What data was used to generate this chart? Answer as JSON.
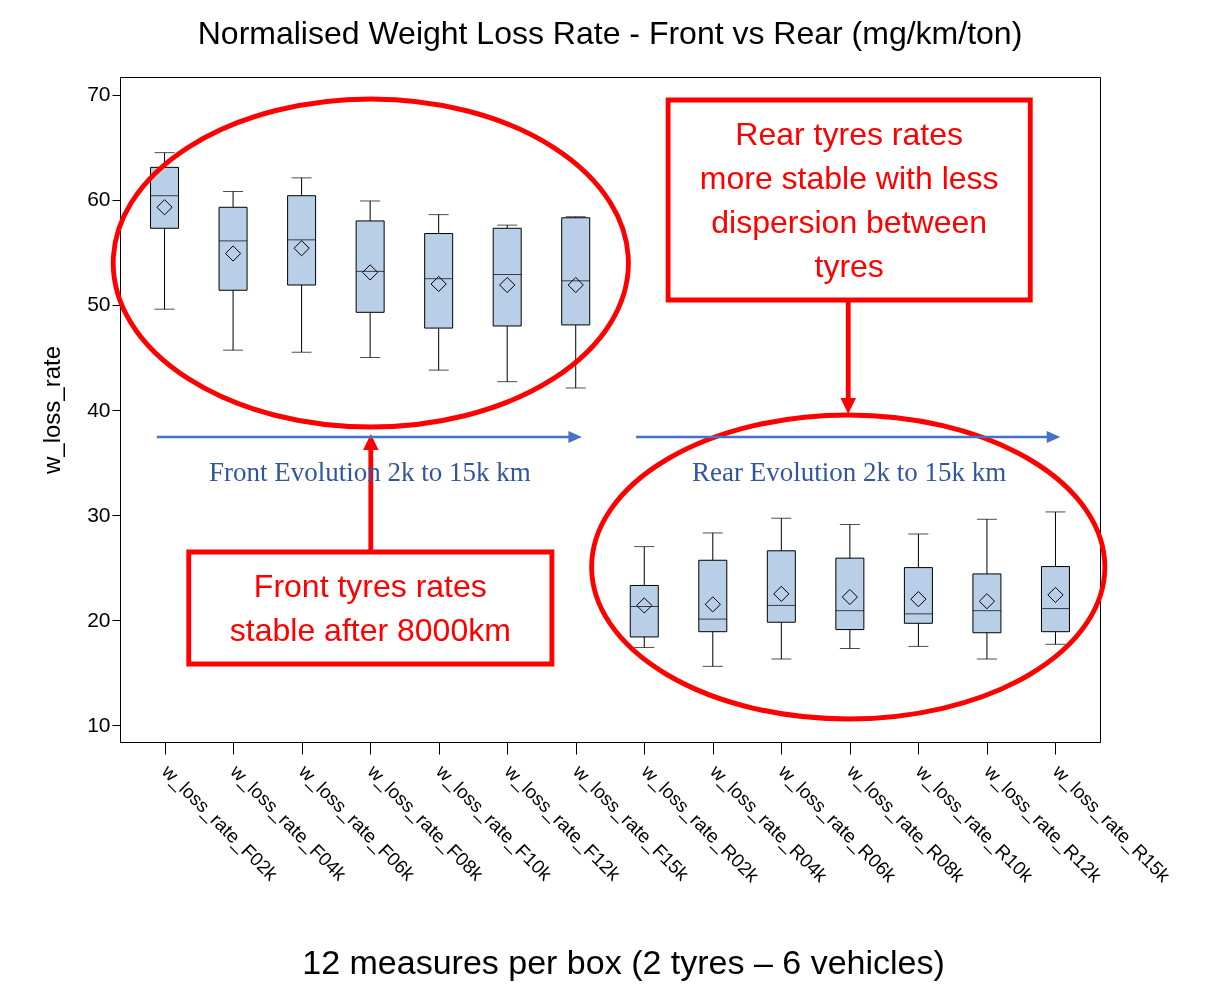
{
  "chart_data": {
    "type": "box",
    "title": "Normalised Weight Loss Rate - Front vs Rear (mg/km/ton)",
    "ylabel": "w_loss_rate",
    "categories": [
      "w_loss_rate_F02k",
      "w_loss_rate_F04k",
      "w_loss_rate_F06k",
      "w_loss_rate_F08k",
      "w_loss_rate_F10k",
      "w_loss_rate_F12k",
      "w_loss_rate_F15k",
      "w_loss_rate_R02k",
      "w_loss_rate_R04k",
      "w_loss_rate_R06k",
      "w_loss_rate_R08k",
      "w_loss_rate_R10k",
      "w_loss_rate_R12k",
      "w_loss_rate_R15k"
    ],
    "boxes": [
      {
        "low": 49.6,
        "q1": 57.3,
        "median": 60.4,
        "q3": 63.1,
        "high": 64.5,
        "mean": 59.3
      },
      {
        "low": 45.7,
        "q1": 51.4,
        "median": 56.1,
        "q3": 59.3,
        "high": 60.8,
        "mean": 54.9
      },
      {
        "low": 45.5,
        "q1": 51.9,
        "median": 56.2,
        "q3": 60.4,
        "high": 62.1,
        "mean": 55.4
      },
      {
        "low": 45.0,
        "q1": 49.3,
        "median": 53.2,
        "q3": 58.0,
        "high": 59.9,
        "mean": 53.1
      },
      {
        "low": 43.8,
        "q1": 47.8,
        "median": 52.5,
        "q3": 56.8,
        "high": 58.6,
        "mean": 52.0
      },
      {
        "low": 42.7,
        "q1": 48.0,
        "median": 52.9,
        "q3": 57.3,
        "high": 57.6,
        "mean": 51.9
      },
      {
        "low": 42.1,
        "q1": 48.1,
        "median": 52.3,
        "q3": 58.3,
        "high": 58.4,
        "mean": 51.9
      },
      {
        "low": 17.4,
        "q1": 18.4,
        "median": 21.3,
        "q3": 23.3,
        "high": 27.0,
        "mean": 21.4
      },
      {
        "low": 15.6,
        "q1": 18.9,
        "median": 20.1,
        "q3": 25.7,
        "high": 28.3,
        "mean": 21.5
      },
      {
        "low": 16.3,
        "q1": 19.8,
        "median": 21.4,
        "q3": 26.6,
        "high": 29.7,
        "mean": 22.5
      },
      {
        "low": 17.3,
        "q1": 19.1,
        "median": 20.9,
        "q3": 25.9,
        "high": 29.1,
        "mean": 22.2
      },
      {
        "low": 17.5,
        "q1": 19.7,
        "median": 20.6,
        "q3": 25.0,
        "high": 28.2,
        "mean": 22.0
      },
      {
        "low": 16.3,
        "q1": 18.8,
        "median": 20.9,
        "q3": 24.4,
        "high": 29.6,
        "mean": 21.8
      },
      {
        "low": 17.7,
        "q1": 18.9,
        "median": 21.1,
        "q3": 25.1,
        "high": 30.3,
        "mean": 22.4
      }
    ],
    "color": "#b9cfe7",
    "marker": "diamond",
    "grid": false,
    "ylim": [
      8.4,
      71.7
    ],
    "yticks": [
      10,
      20,
      30,
      40,
      50,
      60,
      70
    ],
    "annotations": [
      "Front tyres rates stable after 8000km",
      "Rear tyres rates more stable with less dispersion between tyres",
      "Front Evolution 2k to 15k km",
      "Rear Evolution 2k to 15k km",
      "12 measures per box (2 tyres – 6 vehicles)"
    ]
  }
}
